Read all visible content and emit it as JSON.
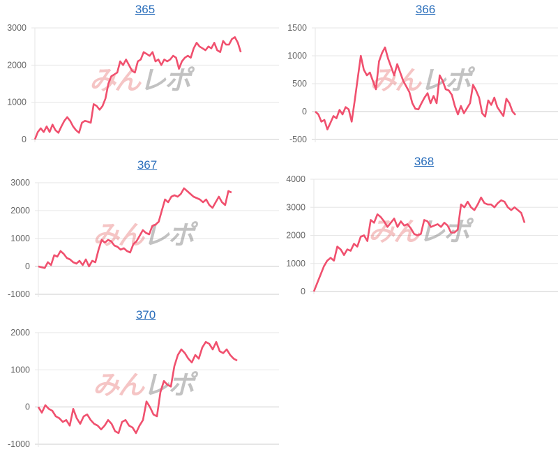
{
  "watermark": {
    "part1": "みん",
    "part2": "レポ"
  },
  "colors": {
    "line": "#f0506e",
    "grid": "#e6e6e6",
    "axis": "#cccccc",
    "title": "#2a6ebb"
  },
  "chart_data": [
    {
      "type": "line",
      "title": "365",
      "ylim": [
        0,
        3000
      ],
      "ticks": [
        0,
        1000,
        2000,
        3000
      ],
      "xlim": [
        0,
        83
      ],
      "values": [
        0,
        200,
        300,
        200,
        350,
        200,
        400,
        250,
        180,
        350,
        500,
        600,
        500,
        350,
        250,
        180,
        450,
        500,
        480,
        450,
        950,
        900,
        800,
        900,
        1100,
        1500,
        1700,
        1750,
        1800,
        2100,
        2000,
        2150,
        2000,
        1850,
        1800,
        2100,
        2150,
        2350,
        2300,
        2250,
        2350,
        2100,
        2150,
        2000,
        2150,
        2100,
        2150,
        2250,
        2200,
        1900,
        2100,
        2200,
        2250,
        2200,
        2450,
        2600,
        2500,
        2450,
        2400,
        2500,
        2450,
        2600,
        2400,
        2350,
        2650,
        2550,
        2550,
        2700,
        2750,
        2600,
        2350
      ]
    },
    {
      "type": "line",
      "title": "366",
      "ylim": [
        -500,
        1500
      ],
      "ticks": [
        -500,
        0,
        500,
        1000,
        1500
      ],
      "xlim": [
        0,
        80
      ],
      "values": [
        0,
        -50,
        -180,
        -150,
        -320,
        -200,
        -80,
        -120,
        30,
        -50,
        80,
        40,
        -180,
        200,
        600,
        1000,
        750,
        650,
        700,
        550,
        400,
        900,
        1050,
        1150,
        950,
        800,
        650,
        850,
        700,
        550,
        450,
        350,
        150,
        50,
        40,
        150,
        250,
        330,
        150,
        280,
        150,
        650,
        550,
        400,
        380,
        300,
        100,
        -50,
        100,
        -30,
        60,
        150,
        480,
        380,
        250,
        -30,
        -90,
        200,
        120,
        250,
        80,
        0,
        -80,
        230,
        150,
        0,
        -60
      ]
    },
    {
      "type": "line",
      "title": "367",
      "ylim": [
        -1000,
        3000
      ],
      "ticks": [
        -1000,
        0,
        1000,
        2000,
        3000
      ],
      "xlim": [
        0,
        76
      ],
      "values": [
        0,
        -30,
        -60,
        150,
        50,
        400,
        350,
        550,
        450,
        300,
        250,
        150,
        100,
        200,
        50,
        250,
        0,
        200,
        150,
        600,
        950,
        850,
        950,
        900,
        750,
        700,
        600,
        650,
        550,
        500,
        800,
        900,
        1100,
        1300,
        1200,
        1150,
        1450,
        1500,
        1600,
        2000,
        2400,
        2300,
        2500,
        2550,
        2500,
        2600,
        2800,
        2700,
        2600,
        2500,
        2450,
        2400,
        2300,
        2400,
        2200,
        2100,
        2300,
        2500,
        2300,
        2200,
        2700,
        2650
      ]
    },
    {
      "type": "line",
      "title": "368",
      "ylim": [
        0,
        4000
      ],
      "ticks": [
        0,
        1000,
        2000,
        3000,
        4000
      ],
      "xlim": [
        0,
        73
      ],
      "values": [
        0,
        300,
        600,
        900,
        1100,
        1200,
        1100,
        1600,
        1500,
        1300,
        1500,
        1450,
        1700,
        1600,
        1950,
        2000,
        1800,
        2550,
        2450,
        2750,
        2650,
        2500,
        2300,
        2450,
        2600,
        2300,
        2500,
        2350,
        2400,
        2250,
        2050,
        2000,
        2050,
        2550,
        2500,
        2300,
        2350,
        2400,
        2300,
        2450,
        2350,
        2100,
        2100,
        2200,
        3100,
        3000,
        3200,
        3000,
        2900,
        3100,
        3350,
        3150,
        3100,
        3100,
        3000,
        3150,
        3250,
        3200,
        3000,
        2900,
        3000,
        2900,
        2800,
        2450
      ]
    },
    {
      "type": "line",
      "title": "370",
      "ylim": [
        -1000,
        2000
      ],
      "ticks": [
        -1000,
        0,
        1000,
        2000
      ],
      "xlim": [
        0,
        69
      ],
      "values": [
        0,
        -150,
        50,
        -50,
        -100,
        -250,
        -300,
        -400,
        -350,
        -500,
        -50,
        -300,
        -450,
        -250,
        -200,
        -350,
        -450,
        -500,
        -600,
        -500,
        -350,
        -450,
        -650,
        -700,
        -400,
        -350,
        -500,
        -550,
        -700,
        -500,
        -350,
        150,
        0,
        -200,
        -250,
        400,
        700,
        600,
        550,
        1100,
        1400,
        1550,
        1450,
        1300,
        1200,
        1400,
        1300,
        1600,
        1750,
        1700,
        1550,
        1750,
        1500,
        1450,
        1550,
        1400,
        1300,
        1250
      ]
    }
  ]
}
